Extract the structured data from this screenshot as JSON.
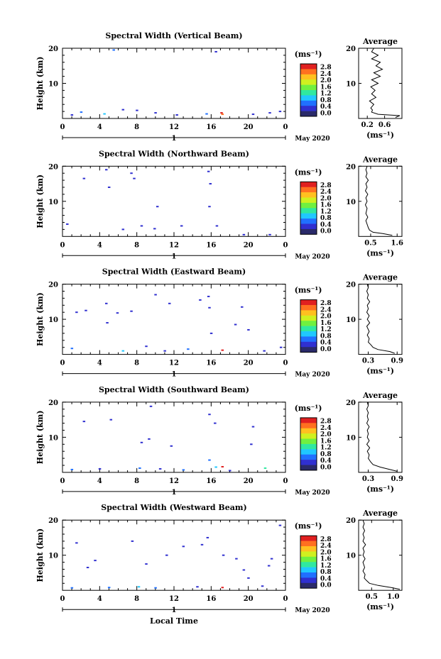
{
  "footer_label": "Local Time",
  "date_label": "May 2020",
  "colorbar_unit": "(ms⁻¹)",
  "avg_unit": "(ms⁻¹)",
  "avg_title": "Average",
  "colorbar_ticks": [
    "0.0",
    "0.4",
    "0.8",
    "1.2",
    "1.6",
    "2.0",
    "2.4",
    "2.8"
  ],
  "colorbar_colors": [
    "#2a2a6a",
    "#3030d0",
    "#2070ff",
    "#20c8ff",
    "#30e8a0",
    "#70f040",
    "#d0f020",
    "#ffc020",
    "#ff7020",
    "#e02020"
  ],
  "chart_data": [
    {
      "type": "heatmap",
      "title": "Spectral Width (Vertical Beam)",
      "ylabel": "Height (km)",
      "xlim": [
        0,
        24
      ],
      "ylim": [
        0,
        20
      ],
      "xticks": [
        "0",
        "4",
        "8",
        "12",
        "16",
        "20",
        "0"
      ],
      "day_label": "1",
      "yticks": [
        "10",
        "20"
      ],
      "avg": {
        "xlim": [
          0.0,
          1.0
        ],
        "xticks": [
          "0.2",
          "0.6"
        ],
        "xtick_vals": [
          0.2,
          0.6
        ],
        "profile": [
          [
            0.85,
            0.3
          ],
          [
            0.95,
            0.8
          ],
          [
            0.45,
            1.2
          ],
          [
            0.3,
            1.8
          ],
          [
            0.32,
            2.4
          ],
          [
            0.28,
            3
          ],
          [
            0.35,
            4
          ],
          [
            0.25,
            5
          ],
          [
            0.4,
            6
          ],
          [
            0.3,
            7
          ],
          [
            0.38,
            8
          ],
          [
            0.28,
            9
          ],
          [
            0.45,
            10
          ],
          [
            0.3,
            11
          ],
          [
            0.5,
            12
          ],
          [
            0.35,
            13
          ],
          [
            0.55,
            14
          ],
          [
            0.4,
            15
          ],
          [
            0.5,
            16
          ],
          [
            0.3,
            17
          ],
          [
            0.45,
            18
          ],
          [
            0.3,
            19
          ],
          [
            0.35,
            20
          ]
        ]
      },
      "cells": [
        [
          5.5,
          19.5,
          2
        ],
        [
          16.5,
          19,
          1
        ],
        [
          2,
          1.8,
          2
        ],
        [
          6.5,
          2.5,
          1
        ],
        [
          10,
          1.6,
          1
        ],
        [
          17.2,
          1.2,
          8
        ],
        [
          17.1,
          1.6,
          9
        ],
        [
          20.5,
          1.2,
          1
        ],
        [
          22.3,
          1.6,
          1
        ],
        [
          1,
          1,
          1
        ],
        [
          4.5,
          1.3,
          3
        ],
        [
          12.3,
          1,
          1
        ],
        [
          15.5,
          1.3,
          2
        ],
        [
          23.4,
          2,
          1
        ],
        [
          8,
          2.3,
          1
        ]
      ]
    },
    {
      "type": "heatmap",
      "title": "Spectral Width (Northward Beam)",
      "ylabel": "Height (km)",
      "xlim": [
        0,
        24
      ],
      "ylim": [
        0,
        20
      ],
      "xticks": [
        "0",
        "4",
        "8",
        "12",
        "16",
        "20",
        "0"
      ],
      "day_label": "1",
      "yticks": [
        "10",
        "20"
      ],
      "avg": {
        "xlim": [
          0.0,
          1.8
        ],
        "xticks": [
          "0.5",
          "1.6"
        ],
        "xtick_vals": [
          0.5,
          1.6
        ],
        "profile": [
          [
            1.4,
            0.3
          ],
          [
            1.0,
            0.8
          ],
          [
            0.6,
            1.2
          ],
          [
            0.45,
            1.8
          ],
          [
            0.4,
            2.5
          ],
          [
            0.35,
            3.5
          ],
          [
            0.3,
            4.5
          ],
          [
            0.38,
            5.5
          ],
          [
            0.3,
            6.5
          ],
          [
            0.35,
            8
          ],
          [
            0.28,
            9
          ],
          [
            0.35,
            10
          ],
          [
            0.3,
            11
          ],
          [
            0.38,
            12
          ],
          [
            0.28,
            13
          ],
          [
            0.35,
            14
          ],
          [
            0.3,
            15
          ],
          [
            0.4,
            16
          ],
          [
            0.3,
            17
          ],
          [
            0.35,
            18
          ],
          [
            0.3,
            19
          ],
          [
            0.35,
            20
          ]
        ]
      },
      "cells": [
        [
          2.3,
          16.5,
          1
        ],
        [
          4.7,
          19,
          1
        ],
        [
          5,
          14,
          1
        ],
        [
          7.4,
          18,
          1
        ],
        [
          7.7,
          16.5,
          1
        ],
        [
          10.2,
          8.5,
          1
        ],
        [
          9.9,
          2.2,
          1
        ],
        [
          6.5,
          2,
          1
        ],
        [
          15.7,
          18.5,
          1
        ],
        [
          15.9,
          15,
          1
        ],
        [
          15.8,
          8.5,
          1
        ],
        [
          16.6,
          3,
          1
        ],
        [
          19.5,
          0.5,
          1
        ],
        [
          22.3,
          0.5,
          1
        ],
        [
          0.5,
          3.5,
          1
        ],
        [
          8.5,
          3,
          1
        ],
        [
          12.8,
          3,
          1
        ]
      ]
    },
    {
      "type": "heatmap",
      "title": "Spectral Width (Eastward Beam)",
      "ylabel": "Height (km)",
      "xlim": [
        0,
        24
      ],
      "ylim": [
        0,
        20
      ],
      "xticks": [
        "0",
        "4",
        "8",
        "12",
        "16",
        "20",
        "0"
      ],
      "day_label": "1",
      "yticks": [
        "10",
        "20"
      ],
      "avg": {
        "xlim": [
          0.1,
          1.0
        ],
        "xticks": [
          "0.3",
          "0.9"
        ],
        "xtick_vals": [
          0.3,
          0.9
        ],
        "profile": [
          [
            0.85,
            0.3
          ],
          [
            0.75,
            0.8
          ],
          [
            0.5,
            1.4
          ],
          [
            0.4,
            2.0
          ],
          [
            0.35,
            2.8
          ],
          [
            0.3,
            3.5
          ],
          [
            0.32,
            4.5
          ],
          [
            0.28,
            5.5
          ],
          [
            0.32,
            6.5
          ],
          [
            0.27,
            8
          ],
          [
            0.33,
            9
          ],
          [
            0.28,
            10
          ],
          [
            0.32,
            11
          ],
          [
            0.27,
            12
          ],
          [
            0.3,
            13
          ],
          [
            0.28,
            14
          ],
          [
            0.33,
            15
          ],
          [
            0.28,
            16
          ],
          [
            0.3,
            17
          ],
          [
            0.27,
            18
          ],
          [
            0.3,
            19
          ],
          [
            0.28,
            20
          ]
        ]
      },
      "cells": [
        [
          1.5,
          12,
          1
        ],
        [
          2.5,
          12.5,
          1
        ],
        [
          4.8,
          9,
          1
        ],
        [
          4.7,
          14.5,
          1
        ],
        [
          5.9,
          11.8,
          1
        ],
        [
          7.4,
          12.3,
          1
        ],
        [
          10,
          17,
          1
        ],
        [
          11.5,
          14.5,
          1
        ],
        [
          14.8,
          15.5,
          1
        ],
        [
          15.7,
          16.5,
          1
        ],
        [
          15.8,
          13.3,
          1
        ],
        [
          16,
          6,
          1
        ],
        [
          18.6,
          8.5,
          1
        ],
        [
          19.3,
          13.5,
          1
        ],
        [
          20,
          7,
          1
        ],
        [
          23.5,
          2,
          1
        ],
        [
          1,
          1.7,
          2
        ],
        [
          6.5,
          1,
          3
        ],
        [
          11,
          1,
          1
        ],
        [
          13.5,
          1.5,
          2
        ],
        [
          17.2,
          1.2,
          9
        ],
        [
          21.7,
          1,
          1
        ],
        [
          9,
          2.3,
          1
        ]
      ]
    },
    {
      "type": "heatmap",
      "title": "Spectral Width (Southward Beam)",
      "ylabel": "Height (km)",
      "xlim": [
        0,
        24
      ],
      "ylim": [
        0,
        20
      ],
      "xticks": [
        "0",
        "4",
        "8",
        "12",
        "16",
        "20",
        "0"
      ],
      "day_label": "1",
      "yticks": [
        "10",
        "20"
      ],
      "avg": {
        "xlim": [
          0.1,
          1.0
        ],
        "xticks": [
          "0.3",
          "0.9"
        ],
        "xtick_vals": [
          0.3,
          0.9
        ],
        "profile": [
          [
            0.9,
            0.3
          ],
          [
            0.75,
            0.8
          ],
          [
            0.55,
            1.5
          ],
          [
            0.4,
            2.2
          ],
          [
            0.35,
            3
          ],
          [
            0.3,
            4
          ],
          [
            0.32,
            5
          ],
          [
            0.28,
            6
          ],
          [
            0.33,
            7
          ],
          [
            0.27,
            8
          ],
          [
            0.32,
            9
          ],
          [
            0.28,
            10
          ],
          [
            0.3,
            11
          ],
          [
            0.28,
            12
          ],
          [
            0.32,
            13
          ],
          [
            0.27,
            14
          ],
          [
            0.3,
            15
          ],
          [
            0.28,
            16
          ],
          [
            0.3,
            17
          ],
          [
            0.27,
            18
          ],
          [
            0.3,
            19
          ],
          [
            0.28,
            20
          ]
        ]
      },
      "cells": [
        [
          2.3,
          14.5,
          1
        ],
        [
          5.2,
          15,
          1
        ],
        [
          9.5,
          18.8,
          1
        ],
        [
          8.5,
          8.5,
          1
        ],
        [
          9.3,
          9.5,
          1
        ],
        [
          11.7,
          7.5,
          1
        ],
        [
          15.8,
          16.5,
          1
        ],
        [
          16.4,
          14,
          1
        ],
        [
          15.8,
          3.5,
          2
        ],
        [
          16.5,
          1.5,
          3
        ],
        [
          17.2,
          1.6,
          9
        ],
        [
          18,
          0.5,
          1
        ],
        [
          20.5,
          13,
          1
        ],
        [
          20.3,
          8,
          1
        ],
        [
          21.8,
          1.2,
          4
        ],
        [
          1,
          0.8,
          2
        ],
        [
          4,
          1,
          1
        ],
        [
          8.3,
          1.2,
          2
        ],
        [
          10.5,
          1,
          1
        ],
        [
          13,
          0.7,
          2
        ]
      ]
    },
    {
      "type": "heatmap",
      "title": "Spectral Width (Westward Beam)",
      "ylabel": "Height (km)",
      "xlim": [
        0,
        24
      ],
      "ylim": [
        0,
        20
      ],
      "xticks": [
        "0",
        "4",
        "8",
        "12",
        "16",
        "20",
        "0"
      ],
      "day_label": "1",
      "yticks": [
        "10",
        "20"
      ],
      "avg": {
        "xlim": [
          0.2,
          1.2
        ],
        "xticks": [
          "0.5",
          "1.0"
        ],
        "xtick_vals": [
          0.5,
          1.0
        ],
        "profile": [
          [
            1.15,
            0.3
          ],
          [
            0.95,
            0.8
          ],
          [
            0.65,
            1.4
          ],
          [
            0.45,
            2.0
          ],
          [
            0.38,
            2.8
          ],
          [
            0.33,
            3.5
          ],
          [
            0.35,
            4.5
          ],
          [
            0.3,
            5.5
          ],
          [
            0.34,
            6.5
          ],
          [
            0.3,
            8
          ],
          [
            0.35,
            9
          ],
          [
            0.3,
            10
          ],
          [
            0.33,
            11
          ],
          [
            0.3,
            12
          ],
          [
            0.36,
            13
          ],
          [
            0.3,
            14
          ],
          [
            0.33,
            15
          ],
          [
            0.3,
            16
          ],
          [
            0.34,
            17
          ],
          [
            0.3,
            18
          ],
          [
            0.33,
            19
          ],
          [
            0.3,
            20
          ]
        ]
      },
      "cells": [
        [
          1.5,
          13.5,
          1
        ],
        [
          2.7,
          6.5,
          1
        ],
        [
          3.5,
          8.5,
          1
        ],
        [
          7.5,
          14,
          1
        ],
        [
          9,
          7.5,
          1
        ],
        [
          11.2,
          10,
          1
        ],
        [
          15,
          13,
          1
        ],
        [
          15.6,
          15,
          1
        ],
        [
          17.3,
          10,
          1
        ],
        [
          18.7,
          9,
          1
        ],
        [
          19.5,
          5.8,
          1
        ],
        [
          20,
          3.5,
          1
        ],
        [
          22.2,
          7,
          1
        ],
        [
          22.5,
          9,
          1
        ],
        [
          23.4,
          18.5,
          1
        ],
        [
          13,
          12.5,
          1
        ],
        [
          17.2,
          0.8,
          9
        ],
        [
          1,
          0.7,
          2
        ],
        [
          5,
          0.8,
          2
        ],
        [
          8.2,
          1,
          3
        ],
        [
          10,
          0.7,
          2
        ],
        [
          14.5,
          1,
          1
        ],
        [
          21.5,
          1.2,
          1
        ]
      ]
    }
  ]
}
